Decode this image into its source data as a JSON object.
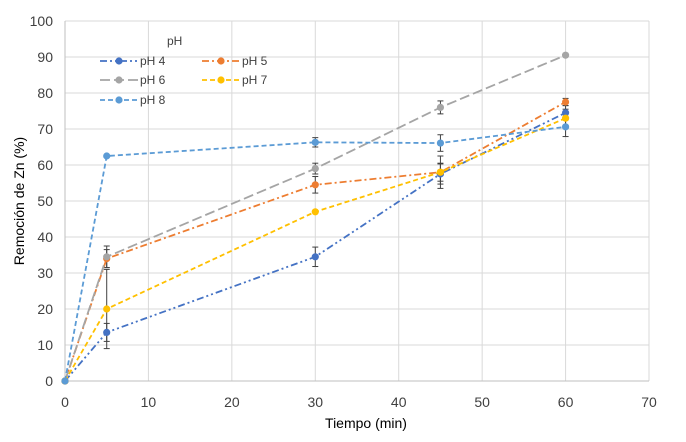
{
  "chart_data": {
    "type": "line",
    "xlabel": "Tiempo (min)",
    "ylabel": "Remoción de Zn (%)",
    "xlim": [
      0,
      70
    ],
    "ylim": [
      0,
      100
    ],
    "xticks": [
      0,
      10,
      20,
      30,
      40,
      50,
      60,
      70
    ],
    "yticks": [
      0,
      10,
      20,
      30,
      40,
      50,
      60,
      70,
      80,
      90,
      100
    ],
    "grid": true,
    "legend": {
      "title": "pH",
      "placement": "top-left"
    },
    "x": [
      0,
      5,
      30,
      45,
      60
    ],
    "series": [
      {
        "name": "pH 4",
        "color": "#4472C4",
        "dash": "dash-dot-dot",
        "values": [
          0,
          13.5,
          34.5,
          57.5,
          74.5
        ],
        "errors": [
          0,
          2.5,
          2.7,
          2.8,
          2
        ]
      },
      {
        "name": "pH 5",
        "color": "#ED7D31",
        "dash": "dash-dot",
        "values": [
          0,
          34,
          54.5,
          58,
          77.5
        ],
        "errors": [
          0,
          2.5,
          2.3,
          2.5,
          1
        ]
      },
      {
        "name": "pH 6",
        "color": "#A5A5A5",
        "dash": "long-dash",
        "values": [
          0,
          34.5,
          59,
          76,
          90.5
        ],
        "errors": [
          0,
          3,
          1.5,
          1.8,
          0
        ]
      },
      {
        "name": "pH 7",
        "color": "#FFC000",
        "dash": "dash",
        "values": [
          0,
          20,
          47,
          58,
          73
        ],
        "errors": [
          0,
          11,
          0,
          4.5,
          2.5
        ]
      },
      {
        "name": "pH 8",
        "color": "#5B9BD5",
        "dash": "dash",
        "values": [
          0,
          62.5,
          66.3,
          66.1,
          70.6
        ],
        "errors": [
          0,
          0,
          1.3,
          2.3,
          2.7
        ]
      }
    ]
  }
}
